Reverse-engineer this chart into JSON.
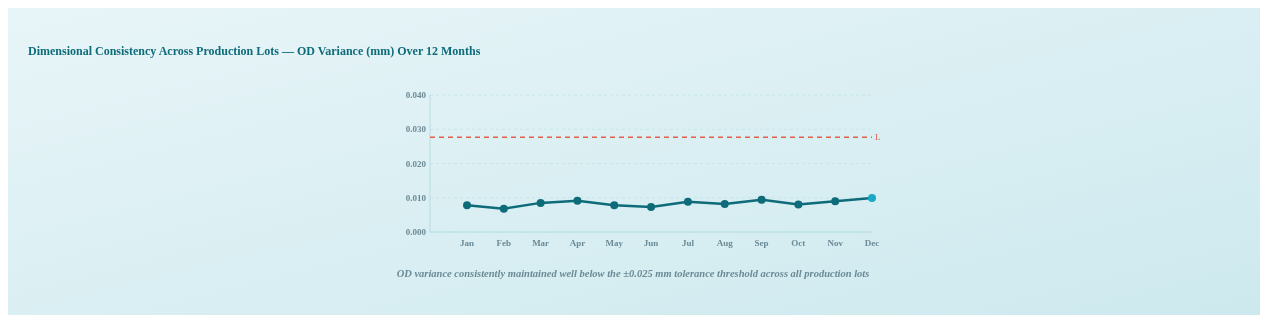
{
  "chart_data": {
    "type": "line",
    "title": "Dimensional Consistency Across Production Lots — OD Variance (mm) Over 12 Months",
    "categories": [
      "Jan",
      "Feb",
      "Mar",
      "Apr",
      "May",
      "Jun",
      "Jul",
      "Aug",
      "Sep",
      "Oct",
      "Nov",
      "Dec"
    ],
    "series": [
      {
        "color": "#0e6b7a",
        "colors": [
          "#0e6b7a",
          "#0e6b7a",
          "#0e6b7a",
          "#0e6b7a",
          "#0e6b7a",
          "#0e6b7a",
          "#0e6b7a",
          "#0e6b7a",
          "#0e6b7a",
          "#0e6b7a",
          "#0e6b7a",
          "#1ba8c4"
        ],
        "values": [
          0.0078,
          0.0068,
          0.0085,
          0.0091,
          0.0078,
          0.0073,
          0.0088,
          0.0082,
          0.0094,
          0.008,
          0.009,
          0.0099
        ]
      }
    ],
    "ylim": [
      0,
      0.04
    ],
    "yticks": [
      {
        "value": 0,
        "label": "0.000"
      },
      {
        "value": 0.01,
        "label": "0.010"
      },
      {
        "value": 0.02,
        "label": "0.020"
      },
      {
        "value": 0.03,
        "label": "0.030"
      },
      {
        "value": 0.04,
        "label": "0.040"
      }
    ],
    "grid": "y",
    "marker": "circle",
    "line_style": "solid",
    "ref_lines": [
      {
        "axis": "y",
        "value": 0.0277,
        "label": "L",
        "color": "#e0604a",
        "line_style": "dashed"
      }
    ],
    "annotations": [
      "OD variance consistently maintained well below the ±0.025 mm tolerance threshold across all production lots"
    ]
  }
}
